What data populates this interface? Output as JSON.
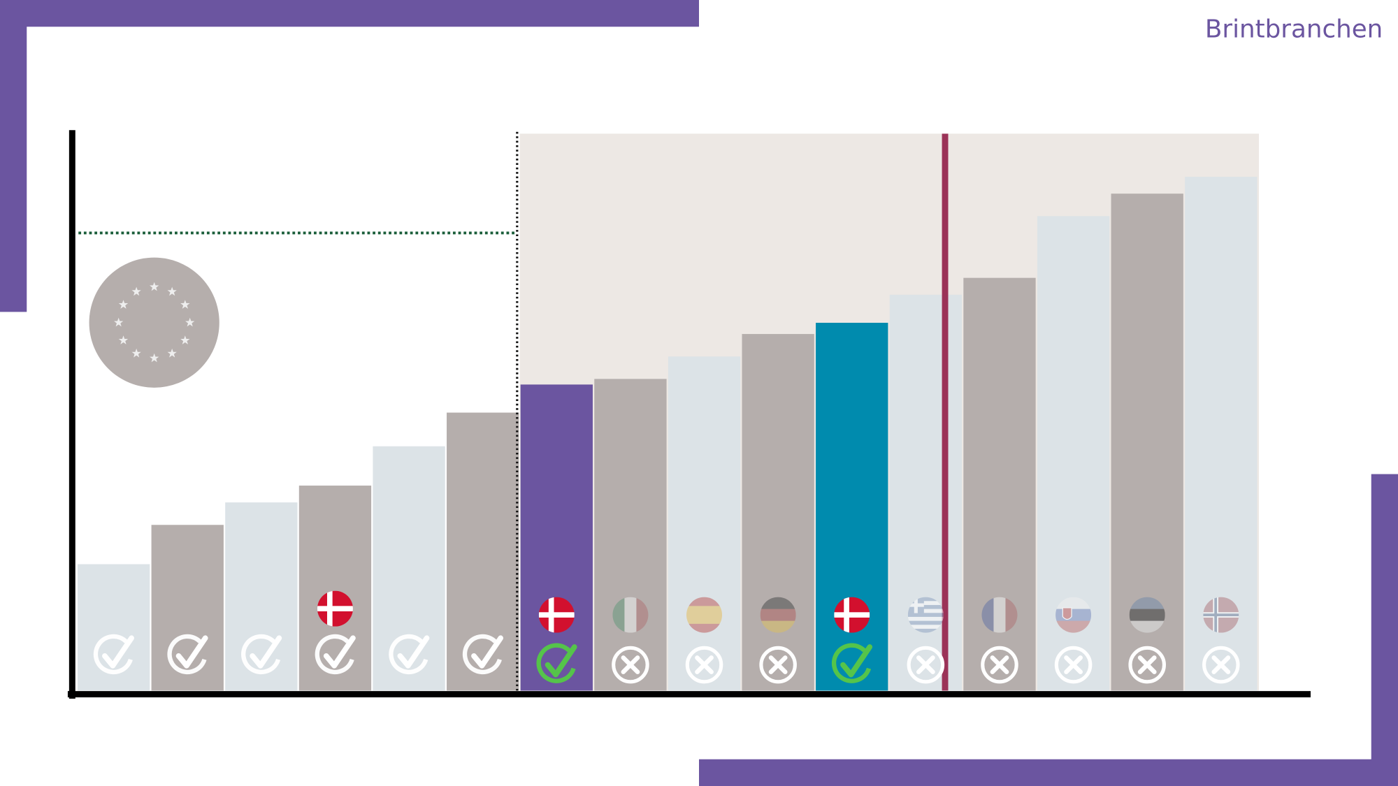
{
  "brand": "Brintbranchen",
  "chart_data": {
    "type": "bar",
    "categories": [
      null,
      null,
      null,
      null,
      null,
      null,
      null,
      null,
      null,
      null,
      null,
      null,
      null,
      null,
      null,
      null
    ],
    "values": [
      23,
      30,
      34,
      37,
      44,
      50,
      55,
      56,
      60,
      64,
      66,
      71,
      74,
      85,
      89,
      92
    ],
    "colors": [
      "#dce3e7",
      "#b5aeac",
      "#dce3e7",
      "#b5aeac",
      "#dce3e7",
      "#b5aeac",
      "#6b55a0",
      "#b5aeac",
      "#dce3e7",
      "#b5aeac",
      "#008bae",
      "#dce3e7",
      "#b5aeac",
      "#dce3e7",
      "#b5aeac",
      "#dce3e7"
    ],
    "ylim": [
      0,
      100
    ],
    "reference_line": 82
  }
}
